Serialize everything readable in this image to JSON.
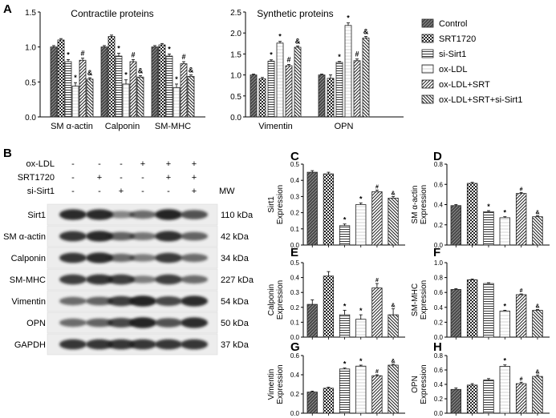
{
  "figure": {
    "panel_letters": [
      "A",
      "B",
      "C",
      "D",
      "E",
      "F",
      "G",
      "H"
    ],
    "legend": [
      "Control",
      "SRT1720",
      "si-Sirt1",
      "ox-LDL",
      "ox-LDL+SRT",
      "ox-LDL+SRT+si-Sirt1"
    ],
    "colors": {
      "bar_fill": "#d0d0d0",
      "bar_stroke": "#222222",
      "axis": "#000000",
      "band": "#1a1a1a"
    }
  },
  "chart_data": [
    {
      "id": "A1",
      "type": "bar",
      "title": "Contractile proteins",
      "categories": [
        "SM α-actin",
        "Calponin",
        "SM-MHC"
      ],
      "series": [
        {
          "name": "Control",
          "values": [
            1.0,
            1.0,
            1.0
          ]
        },
        {
          "name": "SRT1720",
          "values": [
            1.1,
            1.15,
            1.03
          ]
        },
        {
          "name": "si-Sirt1",
          "values": [
            0.79,
            0.87,
            0.87
          ]
        },
        {
          "name": "ox-LDL",
          "values": [
            0.44,
            0.47,
            0.42
          ]
        },
        {
          "name": "ox-LDL+SRT",
          "values": [
            0.81,
            0.79,
            0.76
          ]
        },
        {
          "name": "ox-LDL+SRT+si-Sirt1",
          "values": [
            0.54,
            0.57,
            0.58
          ]
        }
      ],
      "errors": [
        [
          0.02,
          0.02,
          0.02
        ],
        [
          0.02,
          0.02,
          0.02
        ],
        [
          0.03,
          0.04,
          0.03
        ],
        [
          0.05,
          0.06,
          0.05
        ],
        [
          0.03,
          0.03,
          0.03
        ],
        [
          0.02,
          0.02,
          0.02
        ]
      ],
      "markers": [
        [
          "",
          "",
          ""
        ],
        [
          "",
          "",
          ""
        ],
        [
          "*",
          "*",
          "*"
        ],
        [
          "*",
          "*",
          "*"
        ],
        [
          "#",
          "#",
          "#"
        ],
        [
          "&",
          "&",
          "&"
        ]
      ],
      "ylim": [
        0,
        1.5
      ],
      "yticks": [
        "0.0",
        "0.5",
        "1.0",
        "1.5"
      ],
      "ylabel": "",
      "xlabel": ""
    },
    {
      "id": "A2",
      "type": "bar",
      "title": "Synthetic proteins",
      "categories": [
        "Vimentin",
        "OPN"
      ],
      "series": [
        {
          "name": "Control",
          "values": [
            1.0,
            1.0
          ]
        },
        {
          "name": "SRT1720",
          "values": [
            0.91,
            0.92
          ]
        },
        {
          "name": "si-Sirt1",
          "values": [
            1.33,
            1.3
          ]
        },
        {
          "name": "ox-LDL",
          "values": [
            1.76,
            2.18
          ]
        },
        {
          "name": "ox-LDL+SRT",
          "values": [
            1.22,
            1.34
          ]
        },
        {
          "name": "ox-LDL+SRT+si-Sirt1",
          "values": [
            1.66,
            1.88
          ]
        }
      ],
      "errors": [
        [
          0.02,
          0.02
        ],
        [
          0.03,
          0.08
        ],
        [
          0.03,
          0.02
        ],
        [
          0.04,
          0.06
        ],
        [
          0.03,
          0.04
        ],
        [
          0.03,
          0.04
        ]
      ],
      "markers": [
        [
          "",
          ""
        ],
        [
          "",
          ""
        ],
        [
          "*",
          "*"
        ],
        [
          "*",
          "*"
        ],
        [
          "#",
          "#"
        ],
        [
          "&",
          "&"
        ]
      ],
      "ylim": [
        0,
        2.5
      ],
      "yticks": [
        "0.0",
        "0.5",
        "1.0",
        "1.5",
        "2.0",
        "2.5"
      ],
      "ylabel": "",
      "xlabel": ""
    },
    {
      "id": "C",
      "type": "bar",
      "ylabel": "Sirt1\nExpression",
      "categories": [
        "Control",
        "SRT1720",
        "si-Sirt1",
        "ox-LDL",
        "ox-LDL+SRT",
        "ox-LDL+SRT+si-Sirt1"
      ],
      "values": [
        0.45,
        0.44,
        0.12,
        0.25,
        0.33,
        0.29
      ],
      "errors": [
        0.01,
        0.01,
        0.01,
        0.01,
        0.01,
        0.01
      ],
      "markers": [
        "",
        "",
        "*",
        "*",
        "#",
        "&"
      ],
      "ylim": [
        0,
        0.5
      ],
      "yticks": [
        "0.0",
        "0.1",
        "0.2",
        "0.3",
        "0.4",
        "0.5"
      ]
    },
    {
      "id": "D",
      "type": "bar",
      "ylabel": "SM α-actin\nExpression",
      "categories": [
        "Control",
        "SRT1720",
        "si-Sirt1",
        "ox-LDL",
        "ox-LDL+SRT",
        "ox-LDL+SRT+si-Sirt1"
      ],
      "values": [
        0.39,
        0.61,
        0.33,
        0.27,
        0.51,
        0.28
      ],
      "errors": [
        0.01,
        0.01,
        0.01,
        0.01,
        0.01,
        0.01
      ],
      "markers": [
        "",
        "",
        "*",
        "*",
        "#",
        "&"
      ],
      "ylim": [
        0,
        0.8
      ],
      "yticks": [
        "0.0",
        "0.2",
        "0.4",
        "0.6",
        "0.8"
      ]
    },
    {
      "id": "E",
      "type": "bar",
      "ylabel": "Calponin\nExpression",
      "categories": [
        "Control",
        "SRT1720",
        "si-Sirt1",
        "ox-LDL",
        "ox-LDL+SRT",
        "ox-LDL+SRT+si-Sirt1"
      ],
      "values": [
        0.22,
        0.41,
        0.15,
        0.12,
        0.33,
        0.15
      ],
      "errors": [
        0.03,
        0.03,
        0.03,
        0.03,
        0.03,
        0.04
      ],
      "markers": [
        "",
        "",
        "*",
        "*",
        "#",
        "&"
      ],
      "ylim": [
        0,
        0.5
      ],
      "yticks": [
        "0.0",
        "0.1",
        "0.2",
        "0.3",
        "0.4",
        "0.5"
      ]
    },
    {
      "id": "F",
      "type": "bar",
      "ylabel": "SM-MHC\nExpression",
      "categories": [
        "Control",
        "SRT1720",
        "si-Sirt1",
        "ox-LDL",
        "ox-LDL+SRT",
        "ox-LDL+SRT+si-Sirt1"
      ],
      "values": [
        0.64,
        0.77,
        0.72,
        0.35,
        0.57,
        0.36
      ],
      "errors": [
        0.01,
        0.01,
        0.01,
        0.01,
        0.01,
        0.01
      ],
      "markers": [
        "",
        "",
        "",
        "*",
        "#",
        "&"
      ],
      "ylim": [
        0,
        1.0
      ],
      "yticks": [
        "0.0",
        "0.2",
        "0.4",
        "0.6",
        "0.8",
        "1.0"
      ]
    },
    {
      "id": "G",
      "type": "bar",
      "ylabel": "Vimentin\nExpression",
      "categories": [
        "Control",
        "SRT1720",
        "si-Sirt1",
        "ox-LDL",
        "ox-LDL+SRT",
        "ox-LDL+SRT+si-Sirt1"
      ],
      "values": [
        0.22,
        0.26,
        0.46,
        0.49,
        0.39,
        0.5
      ],
      "errors": [
        0.01,
        0.01,
        0.01,
        0.01,
        0.01,
        0.01
      ],
      "markers": [
        "",
        "",
        "*",
        "*",
        "#",
        "&"
      ],
      "ylim": [
        0,
        0.6
      ],
      "yticks": [
        "0.0",
        "0.2",
        "0.4",
        "0.6"
      ]
    },
    {
      "id": "H",
      "type": "bar",
      "ylabel": "OPN\nExpression",
      "categories": [
        "Control",
        "SRT1720",
        "si-Sirt1",
        "ox-LDL",
        "ox-LDL+SRT",
        "ox-LDL+SRT+si-Sirt1"
      ],
      "values": [
        0.33,
        0.39,
        0.46,
        0.65,
        0.41,
        0.51
      ],
      "errors": [
        0.02,
        0.02,
        0.02,
        0.02,
        0.02,
        0.02
      ],
      "markers": [
        "",
        "",
        "",
        "*",
        "#",
        "&"
      ],
      "ylim": [
        0,
        0.8
      ],
      "yticks": [
        "0.0",
        "0.2",
        "0.4",
        "0.6",
        "0.8"
      ]
    }
  ],
  "western_blot": {
    "conditions": [
      {
        "label": "ox-LDL",
        "signs": [
          "-",
          "-",
          "-",
          "+",
          "+",
          "+"
        ]
      },
      {
        "label": "SRT1720",
        "signs": [
          "-",
          "+",
          "-",
          "-",
          "+",
          "+"
        ]
      },
      {
        "label": "si-Sirt1",
        "signs": [
          "-",
          "-",
          "+",
          "-",
          "-",
          "+"
        ]
      }
    ],
    "mw_header": "MW",
    "rows": [
      {
        "protein": "Sirt1",
        "mw": "110 kDa",
        "intensities": [
          0.92,
          0.92,
          0.4,
          0.55,
          0.95,
          0.7
        ]
      },
      {
        "protein": "SM α-actin",
        "mw": "42 kDa",
        "intensities": [
          0.85,
          0.92,
          0.6,
          0.5,
          0.88,
          0.6
        ]
      },
      {
        "protein": "Calponin",
        "mw": "34 kDa",
        "intensities": [
          0.85,
          0.9,
          0.55,
          0.45,
          0.82,
          0.55
        ]
      },
      {
        "protein": "SM-MHC",
        "mw": "227 kDa",
        "intensities": [
          0.8,
          0.85,
          0.8,
          0.45,
          0.8,
          0.55
        ]
      },
      {
        "protein": "Vimentin",
        "mw": "54 kDa",
        "intensities": [
          0.55,
          0.6,
          0.8,
          0.95,
          0.75,
          0.9
        ]
      },
      {
        "protein": "OPN",
        "mw": "50 kDa",
        "intensities": [
          0.55,
          0.6,
          0.75,
          0.95,
          0.7,
          0.9
        ]
      },
      {
        "protein": "GAPDH",
        "mw": "37 kDa",
        "intensities": [
          0.85,
          0.85,
          0.85,
          0.85,
          0.85,
          0.85
        ]
      }
    ]
  }
}
